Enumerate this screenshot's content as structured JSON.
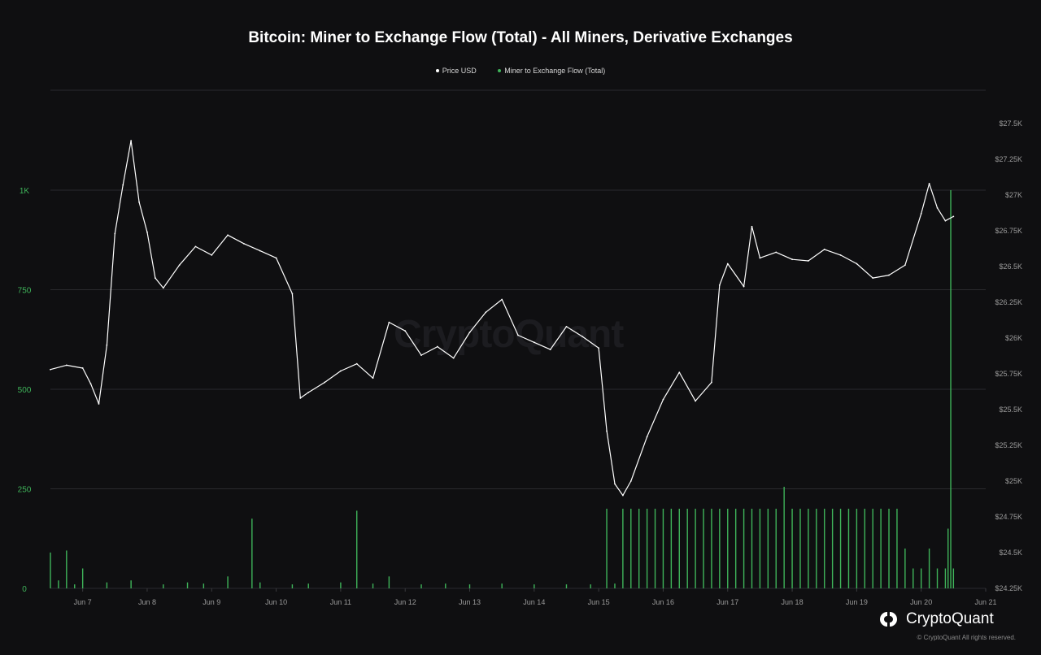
{
  "title": "Bitcoin: Miner to Exchange Flow (Total) - All Miners, Derivative Exchanges",
  "legend": [
    {
      "label": "Price USD",
      "color": "#ffffff"
    },
    {
      "label": "Miner to Exchange Flow (Total)",
      "color": "#3fb45a"
    }
  ],
  "watermark": "CryptoQuant",
  "brand": {
    "name": "CryptoQuant",
    "copyright": "© CryptoQuant All rights reserved."
  },
  "colors": {
    "background": "#0f0f11",
    "price_line": "#ffffff",
    "flow_bars": "#3fb45a",
    "grid": "#2a2a2e"
  },
  "chart_data": {
    "type": "line",
    "title": "Bitcoin: Miner to Exchange Flow (Total) - All Miners, Derivative Exchanges",
    "x_axis": {
      "type": "date",
      "ticks": [
        "Jun 7",
        "Jun 8",
        "Jun 9",
        "Jun 10",
        "Jun 11",
        "Jun 12",
        "Jun 13",
        "Jun 14",
        "Jun 15",
        "Jun 16",
        "Jun 17",
        "Jun 18",
        "Jun 19",
        "Jun 20",
        "Jun 21"
      ],
      "range": [
        "2023-06-06T12:00",
        "2023-06-21T00:00"
      ]
    },
    "y_left": {
      "label": "",
      "ticks": [
        "0",
        "250",
        "500",
        "750",
        "1K"
      ],
      "range": [
        0,
        1000
      ]
    },
    "y_right": {
      "label": "",
      "ticks": [
        "$24.25K",
        "$24.5K",
        "$24.75K",
        "$25K",
        "$25.25K",
        "$25.5K",
        "$25.75K",
        "$26K",
        "$26.25K",
        "$26.5K",
        "$26.75K",
        "$27K",
        "$27.25K",
        "$27.5K"
      ],
      "range": [
        24250,
        27500
      ]
    },
    "legend_position": "top-center",
    "grid": true,
    "series": [
      {
        "name": "Price USD",
        "type": "line",
        "axis": "right",
        "x": [
          "2023-06-06T12:00",
          "2023-06-06T18:00",
          "2023-06-07T00:00",
          "2023-06-07T03:00",
          "2023-06-07T06:00",
          "2023-06-07T09:00",
          "2023-06-07T12:00",
          "2023-06-07T15:00",
          "2023-06-07T18:00",
          "2023-06-07T21:00",
          "2023-06-08T00:00",
          "2023-06-08T03:00",
          "2023-06-08T06:00",
          "2023-06-08T12:00",
          "2023-06-08T18:00",
          "2023-06-09T00:00",
          "2023-06-09T06:00",
          "2023-06-09T12:00",
          "2023-06-09T18:00",
          "2023-06-10T00:00",
          "2023-06-10T06:00",
          "2023-06-10T09:00",
          "2023-06-10T12:00",
          "2023-06-10T18:00",
          "2023-06-11T00:00",
          "2023-06-11T06:00",
          "2023-06-11T12:00",
          "2023-06-11T18:00",
          "2023-06-12T00:00",
          "2023-06-12T06:00",
          "2023-06-12T12:00",
          "2023-06-12T18:00",
          "2023-06-13T00:00",
          "2023-06-13T06:00",
          "2023-06-13T12:00",
          "2023-06-13T18:00",
          "2023-06-14T00:00",
          "2023-06-14T06:00",
          "2023-06-14T12:00",
          "2023-06-14T18:00",
          "2023-06-15T00:00",
          "2023-06-15T03:00",
          "2023-06-15T06:00",
          "2023-06-15T09:00",
          "2023-06-15T12:00",
          "2023-06-15T18:00",
          "2023-06-16T00:00",
          "2023-06-16T06:00",
          "2023-06-16T12:00",
          "2023-06-16T18:00",
          "2023-06-16T21:00",
          "2023-06-17T00:00",
          "2023-06-17T06:00",
          "2023-06-17T09:00",
          "2023-06-17T12:00",
          "2023-06-17T18:00",
          "2023-06-18T00:00",
          "2023-06-18T06:00",
          "2023-06-18T12:00",
          "2023-06-18T18:00",
          "2023-06-19T00:00",
          "2023-06-19T06:00",
          "2023-06-19T12:00",
          "2023-06-19T18:00",
          "2023-06-20T00:00",
          "2023-06-20T03:00",
          "2023-06-20T06:00",
          "2023-06-20T09:00",
          "2023-06-20T12:00"
        ],
        "values": [
          25780,
          25810,
          25790,
          25680,
          25540,
          25950,
          26730,
          27070,
          27380,
          26950,
          26740,
          26420,
          26350,
          26510,
          26640,
          26580,
          26720,
          26660,
          26610,
          26560,
          26310,
          25580,
          25620,
          25690,
          25770,
          25820,
          25720,
          26110,
          26050,
          25880,
          25940,
          25860,
          26040,
          26180,
          26270,
          26020,
          25970,
          25920,
          26080,
          26010,
          25930,
          25350,
          24980,
          24900,
          25000,
          25310,
          25570,
          25760,
          25560,
          25690,
          26370,
          26520,
          26360,
          26780,
          26560,
          26600,
          26550,
          26540,
          26620,
          26580,
          26520,
          26420,
          26440,
          26510,
          26870,
          27080,
          26910,
          26820,
          26850
        ]
      },
      {
        "name": "Miner to Exchange Flow (Total)",
        "type": "bar",
        "axis": "left",
        "x": [
          "2023-06-06T12:00",
          "2023-06-06T15:00",
          "2023-06-06T18:00",
          "2023-06-06T21:00",
          "2023-06-07T00:00",
          "2023-06-07T09:00",
          "2023-06-07T18:00",
          "2023-06-08T06:00",
          "2023-06-08T15:00",
          "2023-06-08T21:00",
          "2023-06-09T06:00",
          "2023-06-09T15:00",
          "2023-06-09T18:00",
          "2023-06-10T06:00",
          "2023-06-10T12:00",
          "2023-06-11T00:00",
          "2023-06-11T06:00",
          "2023-06-11T12:00",
          "2023-06-11T18:00",
          "2023-06-12T06:00",
          "2023-06-12T15:00",
          "2023-06-13T00:00",
          "2023-06-13T12:00",
          "2023-06-14T00:00",
          "2023-06-14T12:00",
          "2023-06-14T21:00",
          "2023-06-15T03:00",
          "2023-06-15T06:00",
          "2023-06-15T09:00",
          "2023-06-15T12:00",
          "2023-06-15T15:00",
          "2023-06-15T18:00",
          "2023-06-15T21:00",
          "2023-06-16T00:00",
          "2023-06-16T03:00",
          "2023-06-16T06:00",
          "2023-06-16T09:00",
          "2023-06-16T12:00",
          "2023-06-16T15:00",
          "2023-06-16T18:00",
          "2023-06-16T21:00",
          "2023-06-17T00:00",
          "2023-06-17T03:00",
          "2023-06-17T06:00",
          "2023-06-17T09:00",
          "2023-06-17T12:00",
          "2023-06-17T15:00",
          "2023-06-17T18:00",
          "2023-06-17T21:00",
          "2023-06-18T00:00",
          "2023-06-18T03:00",
          "2023-06-18T06:00",
          "2023-06-18T09:00",
          "2023-06-18T12:00",
          "2023-06-18T15:00",
          "2023-06-18T18:00",
          "2023-06-18T21:00",
          "2023-06-19T00:00",
          "2023-06-19T03:00",
          "2023-06-19T06:00",
          "2023-06-19T09:00",
          "2023-06-19T12:00",
          "2023-06-19T15:00",
          "2023-06-19T18:00",
          "2023-06-19T21:00",
          "2023-06-20T00:00",
          "2023-06-20T03:00",
          "2023-06-20T06:00",
          "2023-06-20T09:00",
          "2023-06-20T10:00",
          "2023-06-20T11:00",
          "2023-06-20T12:00"
        ],
        "values": [
          90,
          20,
          95,
          10,
          50,
          15,
          20,
          10,
          15,
          12,
          30,
          175,
          15,
          10,
          12,
          15,
          195,
          12,
          30,
          10,
          12,
          10,
          12,
          10,
          10,
          10,
          200,
          12,
          200,
          200,
          200,
          200,
          200,
          200,
          200,
          200,
          200,
          200,
          200,
          200,
          200,
          200,
          200,
          200,
          200,
          200,
          200,
          200,
          255,
          200,
          200,
          200,
          200,
          200,
          200,
          200,
          200,
          200,
          200,
          200,
          200,
          200,
          200,
          100,
          50,
          50,
          100,
          50,
          50,
          150,
          1000,
          50
        ]
      }
    ]
  }
}
